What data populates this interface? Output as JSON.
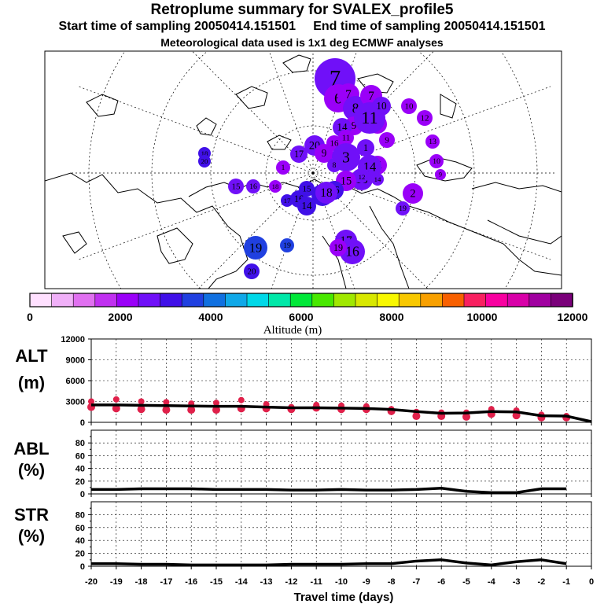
{
  "header": {
    "title": "Retroplume summary for SVALEX_profile5",
    "start_label": "Start time of sampling 20050414.151501",
    "end_label": "End time of sampling 20050414.151501",
    "met_label": "Meteorological data used is 1x1 deg ECMWF analyses"
  },
  "colors": {
    "line": "#000000",
    "cluster": "#e0204a",
    "bar": [
      "#ffe0ff",
      "#f0b0f8",
      "#e070f0",
      "#c030f0",
      "#9a00f8",
      "#7010f8",
      "#4010e8",
      "#2040e0",
      "#1070e0",
      "#10a8e8",
      "#00d8e8",
      "#00e8a8",
      "#00e838",
      "#48e800",
      "#a0e800",
      "#d8e800",
      "#f8f800",
      "#f8c800",
      "#f8a000",
      "#f86000",
      "#f82060",
      "#f800a0",
      "#d800a8",
      "#a000a0",
      "#7a007a"
    ]
  },
  "colorbar": {
    "label": "Altitude (m)",
    "ticks": [
      "0",
      "2000",
      "4000",
      "6000",
      "8000",
      "10000",
      "12000"
    ]
  },
  "map_points": [
    {
      "label": "7",
      "alt": 2600,
      "size": 26
    },
    {
      "label": "6",
      "alt": 2200,
      "size": 18
    },
    {
      "label": "7",
      "alt": 2200,
      "size": 14
    },
    {
      "label": "8",
      "alt": 2500,
      "size": 16
    },
    {
      "label": "7",
      "alt": 2200,
      "size": 14
    },
    {
      "label": "9",
      "alt": 2300,
      "size": 12
    },
    {
      "label": "10",
      "alt": 2300,
      "size": 12
    },
    {
      "label": "11",
      "alt": 2800,
      "size": 20
    },
    {
      "label": "10",
      "alt": 2400,
      "size": 12
    },
    {
      "label": "14",
      "alt": 2800,
      "size": 12
    },
    {
      "label": "9",
      "alt": 2300,
      "size": 10
    },
    {
      "label": "11",
      "alt": 2300,
      "size": 10
    },
    {
      "label": "1",
      "alt": 2800,
      "size": 11
    },
    {
      "label": "10",
      "alt": 2000,
      "size": 10
    },
    {
      "label": "12",
      "alt": 2100,
      "size": 10
    },
    {
      "label": "13",
      "alt": 2100,
      "size": 9
    },
    {
      "label": "10",
      "alt": 2000,
      "size": 9
    },
    {
      "label": "9",
      "alt": 2000,
      "size": 7
    },
    {
      "label": "20",
      "alt": 2400,
      "size": 13
    },
    {
      "label": "16",
      "alt": 2200,
      "size": 10
    },
    {
      "label": "17",
      "alt": 2400,
      "size": 11
    },
    {
      "label": "9",
      "alt": 2300,
      "size": 12
    },
    {
      "label": "3",
      "alt": 2400,
      "size": 18
    },
    {
      "label": "8",
      "alt": 2600,
      "size": 9
    },
    {
      "label": "1",
      "alt": 2300,
      "size": 9
    },
    {
      "label": "11",
      "alt": 2300,
      "size": 12
    },
    {
      "label": "14",
      "alt": 2600,
      "size": 15
    },
    {
      "label": "13",
      "alt": 2600,
      "size": 14
    },
    {
      "label": "15",
      "alt": 2200,
      "size": 13
    },
    {
      "label": "2",
      "alt": 2000,
      "size": 13
    },
    {
      "label": "16",
      "alt": 3000,
      "size": 12
    },
    {
      "label": "15",
      "alt": 3200,
      "size": 10
    },
    {
      "label": "16",
      "alt": 3300,
      "size": 11
    },
    {
      "label": "17",
      "alt": 3100,
      "size": 8
    },
    {
      "label": "14",
      "alt": 3200,
      "size": 12
    },
    {
      "label": "15",
      "alt": 3000,
      "size": 14
    },
    {
      "label": "18",
      "alt": 2800,
      "size": 14
    },
    {
      "label": "17",
      "alt": 2400,
      "size": 14
    },
    {
      "label": "16",
      "alt": 2400,
      "size": 16
    },
    {
      "label": "19",
      "alt": 2000,
      "size": 11
    },
    {
      "label": "18",
      "alt": 3300,
      "size": 8
    },
    {
      "label": "20",
      "alt": 3300,
      "size": 8
    },
    {
      "label": "19",
      "alt": 3800,
      "size": 15
    },
    {
      "label": "20",
      "alt": 3200,
      "size": 10
    },
    {
      "label": "19",
      "alt": 3500,
      "size": 9
    },
    {
      "label": "12",
      "alt": 2800,
      "size": 8
    },
    {
      "label": "14",
      "alt": 2400,
      "size": 8
    },
    {
      "label": "15",
      "alt": 2400,
      "size": 10
    },
    {
      "label": "16",
      "alt": 2400,
      "size": 9
    },
    {
      "label": "18",
      "alt": 2000,
      "size": 8
    },
    {
      "label": "19",
      "alt": 2600,
      "size": 9
    }
  ],
  "chart_data": [
    {
      "type": "line",
      "ylabel": "ALT",
      "yunit": "(m)",
      "xlabel": "Travel time (days)",
      "x_tick_labels": [
        "-20",
        "-19",
        "-18",
        "-17",
        "-16",
        "-15",
        "-14",
        "-13",
        "-12",
        "-11",
        "-10",
        "-9",
        "-8",
        "-7",
        "-6",
        "-5",
        "-4",
        "-3",
        "-2",
        "-1",
        "0"
      ],
      "xlim": [
        -20,
        0
      ],
      "ylim": [
        0,
        12000
      ],
      "y_tick_labels": [
        "12000",
        "9000",
        "6000",
        "3000",
        "0"
      ],
      "series": [
        {
          "name": "mean altitude",
          "x": [
            -20,
            -19,
            -18,
            -17,
            -16,
            -15,
            -14,
            -13,
            -12,
            -11,
            -10,
            -9,
            -8,
            -7,
            -6,
            -5,
            -4,
            -3,
            -2,
            -1,
            0
          ],
          "values": [
            2500,
            2500,
            2450,
            2400,
            2350,
            2300,
            2300,
            2200,
            2100,
            2100,
            2050,
            2000,
            1850,
            1550,
            1300,
            1350,
            1550,
            1500,
            950,
            900,
            100
          ]
        }
      ],
      "clusters": [
        {
          "x": -20,
          "y": [
            3000,
            2200
          ]
        },
        {
          "x": -19,
          "y": [
            3300,
            2000
          ]
        },
        {
          "x": -18,
          "y": [
            3000,
            1900
          ]
        },
        {
          "x": -17,
          "y": [
            2900,
            1800
          ]
        },
        {
          "x": -16,
          "y": [
            2700,
            1800
          ]
        },
        {
          "x": -15,
          "y": [
            2800,
            1800
          ]
        },
        {
          "x": -14,
          "y": [
            3200,
            2000
          ]
        },
        {
          "x": -13,
          "y": [
            2600,
            2000
          ]
        },
        {
          "x": -12,
          "y": [
            2200,
            1900
          ]
        },
        {
          "x": -11,
          "y": [
            2500,
            2100
          ]
        },
        {
          "x": -10,
          "y": [
            2400,
            1900
          ]
        },
        {
          "x": -9,
          "y": [
            2300,
            1900
          ]
        },
        {
          "x": -8,
          "y": [
            1900,
            1600
          ]
        },
        {
          "x": -7,
          "y": [
            1500,
            900
          ]
        },
        {
          "x": -6,
          "y": [
            1400,
            900
          ]
        },
        {
          "x": -5,
          "y": [
            1400,
            800
          ]
        },
        {
          "x": -4,
          "y": [
            1900,
            1200
          ]
        },
        {
          "x": -3,
          "y": [
            1700,
            1000
          ]
        },
        {
          "x": -2,
          "y": [
            1100,
            700
          ]
        },
        {
          "x": -1,
          "y": [
            900,
            700
          ]
        }
      ]
    },
    {
      "type": "line",
      "ylabel": "ABL",
      "yunit": "(%)",
      "xlim": [
        -20,
        0
      ],
      "ylim": [
        0,
        100
      ],
      "y_tick_labels": [
        "80",
        "60",
        "40",
        "20",
        "0"
      ],
      "series": [
        {
          "name": "fraction in ABL",
          "x": [
            -20,
            -19,
            -18,
            -17,
            -16,
            -15,
            -14,
            -13,
            -12,
            -11,
            -10,
            -9,
            -8,
            -7,
            -6,
            -5,
            -4,
            -3,
            -2,
            -1
          ],
          "values": [
            7,
            7,
            8,
            8,
            8,
            7,
            7,
            7,
            6,
            6,
            7,
            6,
            6,
            7,
            9,
            4,
            2,
            2,
            8,
            8
          ]
        }
      ]
    },
    {
      "type": "line",
      "ylabel": "STR",
      "yunit": "(%)",
      "xlim": [
        -20,
        0
      ],
      "ylim": [
        0,
        100
      ],
      "y_tick_labels": [
        "80",
        "60",
        "40",
        "20",
        "0"
      ],
      "series": [
        {
          "name": "fraction in stratosphere",
          "x": [
            -20,
            -19,
            -18,
            -17,
            -16,
            -15,
            -14,
            -13,
            -12,
            -11,
            -10,
            -9,
            -8,
            -7,
            -6,
            -5,
            -4,
            -3,
            -2,
            -1
          ],
          "values": [
            4,
            4,
            3,
            3,
            2,
            2,
            2,
            2,
            3,
            3,
            3,
            4,
            4,
            8,
            10,
            5,
            2,
            7,
            10,
            4
          ]
        }
      ]
    }
  ]
}
